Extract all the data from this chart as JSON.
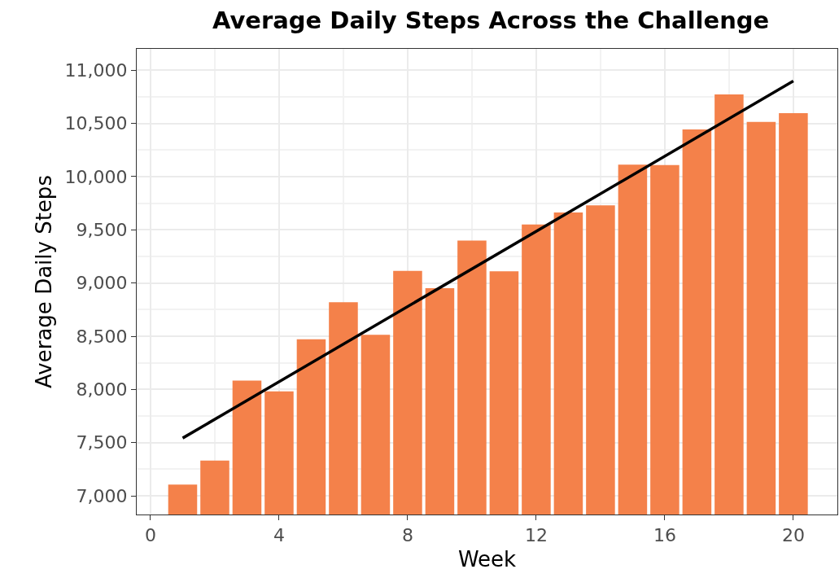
{
  "chart_data": {
    "type": "bar",
    "title": "Average Daily Steps Across the Challenge",
    "xlabel": "Week",
    "ylabel": "Average Daily Steps",
    "x": [
      1,
      2,
      3,
      4,
      5,
      6,
      7,
      8,
      9,
      10,
      11,
      12,
      13,
      14,
      15,
      16,
      17,
      18,
      19,
      20
    ],
    "series": [
      {
        "color": "#f4814a",
        "values": [
          7107,
          7331,
          8083,
          7982,
          8471,
          8819,
          8513,
          9113,
          8952,
          9399,
          9110,
          9549,
          9662,
          9730,
          10112,
          10109,
          10443,
          10771,
          10513,
          10595
        ]
      },
      {
        "type": "line",
        "color": "#000000",
        "x": [
          1,
          20
        ],
        "values": [
          7543,
          10898
        ],
        "line_style": "solid"
      }
    ],
    "xlim": [
      -0.43,
      21.37
    ],
    "xticks": [
      0,
      4,
      8,
      12,
      16,
      20
    ],
    "ylim": [
      6825,
      11200
    ],
    "yticks": [
      {
        "value": 7000,
        "label": "7,000"
      },
      {
        "value": 7500,
        "label": "7,500"
      },
      {
        "value": 8000,
        "label": "8,000"
      },
      {
        "value": 8500,
        "label": "8,500"
      },
      {
        "value": 9000,
        "label": "9,000"
      },
      {
        "value": 9500,
        "label": "9,500"
      },
      {
        "value": 10000,
        "label": "10,000"
      },
      {
        "value": 10500,
        "label": "10,500"
      },
      {
        "value": 11000,
        "label": "11,000"
      }
    ],
    "grid": true
  }
}
